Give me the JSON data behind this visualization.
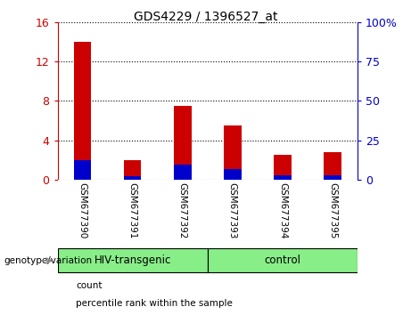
{
  "title": "GDS4229 / 1396527_at",
  "categories": [
    "GSM677390",
    "GSM677391",
    "GSM677392",
    "GSM677393",
    "GSM677394",
    "GSM677395"
  ],
  "count_values": [
    14.0,
    2.0,
    7.5,
    5.5,
    2.5,
    2.8
  ],
  "percentile_values": [
    2.0,
    0.35,
    1.5,
    1.1,
    0.4,
    0.45
  ],
  "ylim_left": [
    0,
    16
  ],
  "ylim_right": [
    0,
    100
  ],
  "yticks_left": [
    0,
    4,
    8,
    12,
    16
  ],
  "yticks_right": [
    0,
    25,
    50,
    75,
    100
  ],
  "ytick_labels_right": [
    "0",
    "25",
    "50",
    "75",
    "100%"
  ],
  "left_axis_color": "#cc0000",
  "right_axis_color": "#0000cc",
  "count_color": "#cc0000",
  "percentile_color": "#0000cc",
  "bar_width": 0.35,
  "groups": [
    {
      "label": "HIV-transgenic",
      "indices": [
        0,
        1,
        2
      ],
      "color": "#88ee88"
    },
    {
      "label": "control",
      "indices": [
        3,
        4,
        5
      ],
      "color": "#88ee88"
    }
  ],
  "genotype_label": "genotype/variation",
  "legend_items": [
    {
      "label": "count",
      "color": "#cc0000"
    },
    {
      "label": "percentile rank within the sample",
      "color": "#0000cc"
    }
  ],
  "xlabel_bg_color": "#d8d8d8",
  "xlabel_border_color": "#aaaaaa",
  "plot_bg_color": "#ffffff",
  "grid_color": "black",
  "grid_linewidth": 0.8
}
